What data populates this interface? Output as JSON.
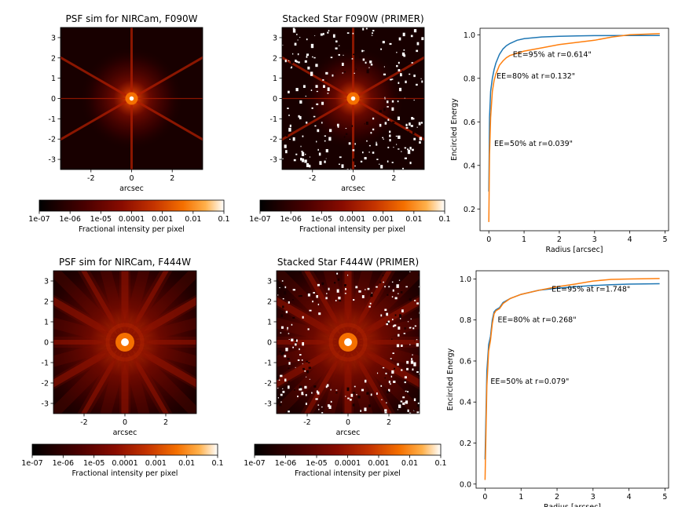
{
  "chart_data": [
    {
      "type": "heatmap",
      "title": "PSF sim for NIRCam, F090W",
      "xlabel": "arcsec",
      "xlim": [
        -3.5,
        3.5
      ],
      "ylim": [
        -3.5,
        3.5
      ],
      "xticks": [
        -2,
        0,
        2
      ],
      "yticks": [
        -3,
        -2,
        -1,
        0,
        1,
        2,
        3
      ],
      "colorbar": {
        "label": "Fractional intensity per pixel",
        "ticks": [
          "1e-07",
          "1e-06",
          "1e-05",
          "0.0001",
          "0.001",
          "0.01",
          "0.1"
        ],
        "scale": "log",
        "colormap": "gist_heat"
      }
    },
    {
      "type": "heatmap",
      "title": "Stacked Star F090W (PRIMER)",
      "xlabel": "arcsec",
      "xlim": [
        -3.5,
        3.5
      ],
      "ylim": [
        -3.5,
        3.5
      ],
      "xticks": [
        -2,
        0,
        2
      ],
      "yticks": [
        -3,
        -2,
        -1,
        0,
        1,
        2,
        3
      ],
      "colorbar": {
        "label": "Fractional intensity per pixel",
        "ticks": [
          "1e-07",
          "1e-06",
          "1e-05",
          "0.0001",
          "0.001",
          "0.01",
          "0.1"
        ],
        "scale": "log",
        "colormap": "gist_heat"
      }
    },
    {
      "type": "line",
      "xlabel": "Radius [arcsec]",
      "ylabel": "Encircled Energy",
      "xlim": [
        -0.25,
        5.1
      ],
      "ylim": [
        0.1,
        1.03
      ],
      "xticks": [
        0,
        1,
        2,
        3,
        4,
        5
      ],
      "yticks": [
        0.2,
        0.4,
        0.6,
        0.8,
        1.0
      ],
      "series": [
        {
          "color": "#1f77b4",
          "x": [
            0,
            0.02,
            0.05,
            0.1,
            0.15,
            0.2,
            0.3,
            0.4,
            0.5,
            0.6,
            0.8,
            1.0,
            1.5,
            2.0,
            2.5,
            3.0,
            4.0,
            4.85
          ],
          "y": [
            0.28,
            0.62,
            0.74,
            0.8,
            0.84,
            0.87,
            0.91,
            0.935,
            0.95,
            0.96,
            0.975,
            0.982,
            0.99,
            0.993,
            0.995,
            0.996,
            0.997,
            0.997
          ]
        },
        {
          "color": "#ff7f0e",
          "x": [
            0,
            0.02,
            0.05,
            0.1,
            0.15,
            0.2,
            0.3,
            0.4,
            0.5,
            0.6,
            0.8,
            1.0,
            1.5,
            2.0,
            2.5,
            3.0,
            3.5,
            4.0,
            4.85
          ],
          "y": [
            0.14,
            0.45,
            0.62,
            0.74,
            0.79,
            0.82,
            0.86,
            0.88,
            0.895,
            0.905,
            0.915,
            0.925,
            0.94,
            0.955,
            0.965,
            0.975,
            0.99,
            1.0,
            1.005
          ]
        }
      ],
      "annotations": [
        {
          "text": "EE=95% at r=0.614\"",
          "x": 0.68,
          "y": 0.91
        },
        {
          "text": "EE=80% at r=0.132\"",
          "x": 0.22,
          "y": 0.81
        },
        {
          "text": "EE=50% at r=0.039\"",
          "x": 0.15,
          "y": 0.5
        }
      ]
    },
    {
      "type": "heatmap",
      "title": "PSF sim for NIRCam, F444W",
      "xlabel": "arcsec",
      "xlim": [
        -3.5,
        3.5
      ],
      "ylim": [
        -3.5,
        3.5
      ],
      "xticks": [
        -2,
        0,
        2
      ],
      "yticks": [
        -3,
        -2,
        -1,
        0,
        1,
        2,
        3
      ],
      "colorbar": {
        "label": "Fractional intensity per pixel",
        "ticks": [
          "1e-07",
          "1e-06",
          "1e-05",
          "0.0001",
          "0.001",
          "0.01",
          "0.1"
        ],
        "scale": "log",
        "colormap": "gist_heat"
      }
    },
    {
      "type": "heatmap",
      "title": "Stacked Star F444W (PRIMER)",
      "xlabel": "arcsec",
      "xlim": [
        -3.5,
        3.5
      ],
      "ylim": [
        -3.5,
        3.5
      ],
      "xticks": [
        -2,
        0,
        2
      ],
      "yticks": [
        -3,
        -2,
        -1,
        0,
        1,
        2,
        3
      ],
      "colorbar": {
        "label": "Fractional intensity per pixel",
        "ticks": [
          "1e-07",
          "1e-06",
          "1e-05",
          "0.0001",
          "0.001",
          "0.01",
          "0.1"
        ],
        "scale": "log",
        "colormap": "gist_heat"
      }
    },
    {
      "type": "line",
      "xlabel": "Radius [arcsec]",
      "ylabel": "Encircled Energy",
      "xlim": [
        -0.25,
        5.1
      ],
      "ylim": [
        -0.02,
        1.04
      ],
      "xticks": [
        0,
        1,
        2,
        3,
        4,
        5
      ],
      "yticks": [
        0.0,
        0.2,
        0.4,
        0.6,
        0.8,
        1.0
      ],
      "series": [
        {
          "color": "#1f77b4",
          "x": [
            0,
            0.05,
            0.1,
            0.15,
            0.2,
            0.25,
            0.3,
            0.4,
            0.5,
            0.7,
            1.0,
            1.5,
            2.0,
            2.5,
            3.0,
            3.5,
            4.0,
            4.85
          ],
          "y": [
            0.12,
            0.55,
            0.68,
            0.72,
            0.8,
            0.84,
            0.85,
            0.86,
            0.885,
            0.905,
            0.925,
            0.945,
            0.955,
            0.962,
            0.968,
            0.972,
            0.975,
            0.977
          ]
        },
        {
          "color": "#ff7f0e",
          "x": [
            0,
            0.05,
            0.1,
            0.15,
            0.2,
            0.25,
            0.3,
            0.4,
            0.5,
            0.7,
            1.0,
            1.5,
            2.0,
            2.5,
            3.0,
            3.5,
            4.0,
            4.85
          ],
          "y": [
            0.02,
            0.48,
            0.65,
            0.7,
            0.78,
            0.83,
            0.845,
            0.855,
            0.88,
            0.905,
            0.925,
            0.945,
            0.962,
            0.975,
            0.99,
            0.998,
            1.0,
            1.002
          ]
        }
      ],
      "annotations": [
        {
          "text": "EE=95% at r=1.748\"",
          "x": 1.85,
          "y": 0.95
        },
        {
          "text": "EE=80% at r=0.268\"",
          "x": 0.35,
          "y": 0.8
        },
        {
          "text": "EE=50% at r=0.079\"",
          "x": 0.15,
          "y": 0.5
        }
      ]
    }
  ]
}
